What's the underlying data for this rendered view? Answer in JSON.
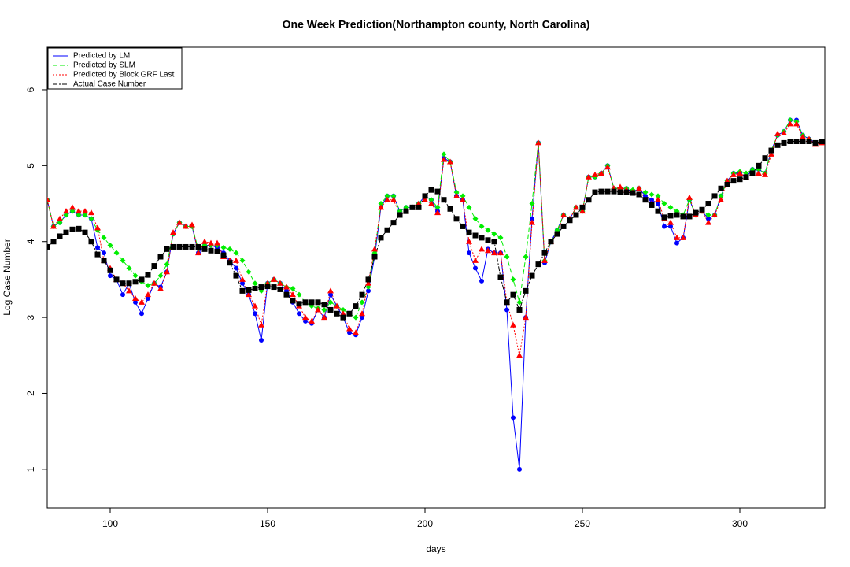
{
  "chart_data": {
    "type": "line",
    "title": "One Week Prediction(Northampton county, North Carolina)",
    "x_label": "days",
    "y_label": "Log Case Number",
    "xlim": [
      80,
      327
    ],
    "ylim": [
      0.49,
      6.56
    ],
    "xticks": [
      100,
      150,
      200,
      250,
      300
    ],
    "yticks": [
      1,
      2,
      3,
      4,
      5,
      6
    ],
    "grid": false,
    "legend": "top-left",
    "x": [
      80,
      82,
      84,
      86,
      88,
      90,
      92,
      94,
      96,
      98,
      100,
      102,
      104,
      106,
      108,
      110,
      112,
      114,
      116,
      118,
      120,
      122,
      124,
      126,
      128,
      130,
      132,
      134,
      136,
      138,
      140,
      142,
      144,
      146,
      148,
      150,
      152,
      154,
      156,
      158,
      160,
      162,
      164,
      166,
      168,
      170,
      172,
      174,
      176,
      178,
      180,
      182,
      184,
      186,
      188,
      190,
      192,
      194,
      196,
      198,
      200,
      202,
      204,
      206,
      208,
      210,
      212,
      214,
      216,
      218,
      220,
      222,
      224,
      226,
      228,
      230,
      232,
      234,
      236,
      238,
      240,
      242,
      244,
      246,
      248,
      250,
      252,
      254,
      256,
      258,
      260,
      262,
      264,
      266,
      268,
      270,
      272,
      274,
      276,
      278,
      280,
      282,
      284,
      286,
      288,
      290,
      292,
      294,
      296,
      298,
      300,
      302,
      304,
      306,
      308,
      310,
      312,
      314,
      316,
      318,
      320,
      322,
      324,
      326
    ],
    "series": [
      {
        "name": "Predicted by LM",
        "color": "#0000ff",
        "line_style": "solid",
        "marker": "circle",
        "values": [
          4.55,
          4.2,
          4.25,
          4.35,
          4.4,
          4.35,
          4.35,
          4.3,
          3.92,
          3.85,
          3.55,
          3.5,
          3.3,
          3.45,
          3.2,
          3.05,
          3.25,
          3.45,
          3.4,
          3.6,
          4.1,
          4.25,
          4.2,
          4.2,
          3.85,
          3.95,
          3.95,
          3.92,
          3.85,
          3.75,
          3.65,
          3.45,
          3.3,
          3.05,
          2.7,
          3.45,
          3.5,
          3.45,
          3.35,
          3.2,
          3.05,
          2.95,
          2.92,
          3.1,
          3.0,
          3.3,
          3.15,
          3.0,
          2.8,
          2.77,
          3.0,
          3.35,
          3.8,
          4.45,
          4.6,
          4.6,
          4.4,
          4.45,
          4.45,
          4.5,
          4.6,
          4.55,
          4.4,
          5.1,
          5.05,
          4.6,
          4.55,
          3.85,
          3.65,
          3.48,
          3.9,
          3.85,
          3.85,
          3.1,
          1.68,
          1.0,
          3.0,
          4.3,
          5.3,
          3.72,
          4.0,
          4.15,
          4.35,
          4.3,
          4.45,
          4.4,
          4.85,
          4.85,
          4.9,
          5.0,
          4.7,
          4.7,
          4.7,
          4.65,
          4.7,
          4.6,
          4.55,
          4.5,
          4.2,
          4.2,
          3.98,
          4.05,
          4.55,
          4.35,
          4.4,
          4.3,
          4.35,
          4.6,
          4.8,
          4.9,
          4.9,
          4.85,
          4.95,
          4.95,
          4.9,
          5.2,
          5.4,
          5.45,
          5.6,
          5.6,
          5.4,
          5.35,
          5.3,
          5.32
        ]
      },
      {
        "name": "Predicted by SLM",
        "color": "#00ee00",
        "line_style": "dashed",
        "marker": "diamond",
        "values": [
          4.55,
          4.2,
          4.25,
          4.35,
          4.4,
          4.35,
          4.35,
          4.3,
          4.15,
          4.05,
          3.95,
          3.85,
          3.75,
          3.65,
          3.55,
          3.47,
          3.42,
          3.45,
          3.55,
          3.7,
          4.1,
          4.25,
          4.2,
          4.2,
          3.9,
          3.95,
          3.95,
          3.95,
          3.92,
          3.9,
          3.85,
          3.75,
          3.6,
          3.45,
          3.35,
          3.45,
          3.5,
          3.45,
          3.4,
          3.38,
          3.3,
          3.2,
          3.15,
          3.12,
          3.1,
          3.2,
          3.15,
          3.1,
          3.05,
          3.0,
          3.2,
          3.4,
          3.85,
          4.5,
          4.6,
          4.6,
          4.4,
          4.45,
          4.45,
          4.5,
          4.6,
          4.55,
          4.45,
          5.15,
          5.05,
          4.65,
          4.6,
          4.45,
          4.3,
          4.2,
          4.15,
          4.1,
          4.05,
          3.8,
          3.5,
          3.2,
          3.8,
          4.5,
          5.3,
          3.75,
          4.0,
          4.15,
          4.35,
          4.3,
          4.45,
          4.4,
          4.85,
          4.85,
          4.9,
          5.0,
          4.7,
          4.7,
          4.7,
          4.68,
          4.7,
          4.65,
          4.62,
          4.6,
          4.5,
          4.45,
          4.4,
          4.35,
          4.55,
          4.35,
          4.4,
          4.35,
          4.35,
          4.6,
          4.8,
          4.9,
          4.92,
          4.9,
          4.95,
          4.95,
          4.9,
          5.2,
          5.4,
          5.45,
          5.6,
          5.58,
          5.4,
          5.35,
          5.3,
          5.32
        ]
      },
      {
        "name": "Predicted by Block GRF Last",
        "color": "#ff0000",
        "line_style": "dotted",
        "marker": "triangle",
        "values": [
          4.55,
          4.2,
          4.3,
          4.4,
          4.45,
          4.4,
          4.4,
          4.38,
          4.18,
          3.75,
          3.65,
          3.5,
          3.45,
          3.35,
          3.25,
          3.2,
          3.3,
          3.45,
          3.38,
          3.6,
          4.12,
          4.25,
          4.2,
          4.22,
          3.85,
          4.0,
          3.98,
          3.98,
          3.8,
          3.75,
          3.75,
          3.5,
          3.3,
          3.15,
          2.9,
          3.45,
          3.5,
          3.45,
          3.4,
          3.3,
          3.15,
          3.0,
          2.95,
          3.1,
          3.0,
          3.35,
          3.15,
          3.05,
          2.85,
          2.8,
          3.05,
          3.45,
          3.9,
          4.45,
          4.55,
          4.55,
          4.35,
          4.4,
          4.45,
          4.5,
          4.55,
          4.5,
          4.38,
          5.08,
          5.05,
          4.6,
          4.55,
          4.0,
          3.75,
          3.9,
          3.88,
          3.85,
          3.85,
          3.2,
          2.9,
          2.5,
          3.0,
          4.25,
          5.3,
          3.75,
          4.0,
          4.1,
          4.35,
          4.3,
          4.45,
          4.4,
          4.85,
          4.88,
          4.9,
          4.98,
          4.7,
          4.72,
          4.68,
          4.65,
          4.7,
          4.55,
          4.5,
          4.55,
          4.3,
          4.25,
          4.05,
          4.05,
          4.58,
          4.35,
          4.4,
          4.25,
          4.35,
          4.55,
          4.8,
          4.88,
          4.9,
          4.85,
          4.9,
          4.9,
          4.88,
          5.15,
          5.42,
          5.43,
          5.55,
          5.55,
          5.38,
          5.35,
          5.28,
          5.3
        ]
      },
      {
        "name": "Actual Case Number",
        "color": "#000000",
        "line_style": "dashdot",
        "marker": "square",
        "values": [
          3.93,
          4.0,
          4.07,
          4.12,
          4.16,
          4.17,
          4.12,
          4.0,
          3.83,
          3.75,
          3.62,
          3.5,
          3.45,
          3.45,
          3.47,
          3.5,
          3.56,
          3.68,
          3.8,
          3.9,
          3.93,
          3.93,
          3.93,
          3.93,
          3.93,
          3.9,
          3.88,
          3.87,
          3.82,
          3.72,
          3.55,
          3.35,
          3.36,
          3.38,
          3.4,
          3.41,
          3.4,
          3.37,
          3.3,
          3.22,
          3.18,
          3.2,
          3.2,
          3.2,
          3.17,
          3.1,
          3.05,
          3.0,
          3.05,
          3.15,
          3.3,
          3.5,
          3.8,
          4.05,
          4.15,
          4.25,
          4.35,
          4.4,
          4.45,
          4.45,
          4.6,
          4.68,
          4.66,
          4.55,
          4.43,
          4.3,
          4.2,
          4.12,
          4.08,
          4.05,
          4.02,
          4.0,
          3.53,
          3.2,
          3.3,
          3.1,
          3.35,
          3.55,
          3.7,
          3.85,
          4.0,
          4.1,
          4.2,
          4.28,
          4.35,
          4.45,
          4.55,
          4.65,
          4.66,
          4.66,
          4.66,
          4.65,
          4.65,
          4.64,
          4.62,
          4.55,
          4.48,
          4.4,
          4.32,
          4.34,
          4.35,
          4.33,
          4.33,
          4.38,
          4.42,
          4.5,
          4.6,
          4.7,
          4.75,
          4.8,
          4.82,
          4.85,
          4.9,
          5.0,
          5.1,
          5.2,
          5.27,
          5.3,
          5.32,
          5.32,
          5.32,
          5.32,
          5.3,
          5.32
        ]
      }
    ]
  }
}
